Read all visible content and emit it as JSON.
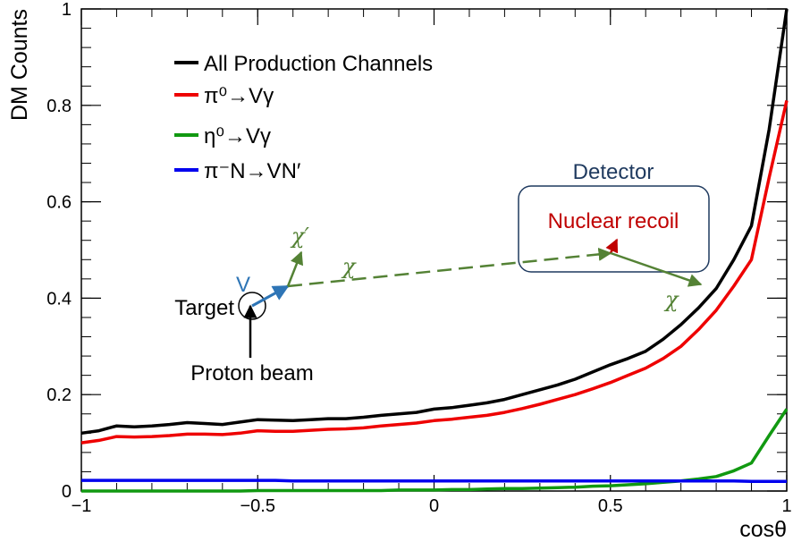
{
  "chart_data": {
    "type": "line",
    "title": "",
    "xlabel": "cosθ",
    "ylabel": "DM Counts",
    "xlim": [
      -1,
      1
    ],
    "ylim": [
      0,
      1
    ],
    "x_ticks": [
      "−1",
      "−0.5",
      "0",
      "0.5",
      "1"
    ],
    "y_ticks": [
      "0",
      "0.2",
      "0.4",
      "0.6",
      "0.8",
      "1"
    ],
    "grid": false,
    "legend_position": "top-left",
    "x": [
      -1.0,
      -0.95,
      -0.9,
      -0.85,
      -0.8,
      -0.75,
      -0.7,
      -0.65,
      -0.6,
      -0.55,
      -0.5,
      -0.45,
      -0.4,
      -0.35,
      -0.3,
      -0.25,
      -0.2,
      -0.15,
      -0.1,
      -0.05,
      0.0,
      0.05,
      0.1,
      0.15,
      0.2,
      0.25,
      0.3,
      0.35,
      0.4,
      0.45,
      0.5,
      0.55,
      0.6,
      0.65,
      0.7,
      0.75,
      0.8,
      0.85,
      0.9,
      0.95,
      1.0
    ],
    "series": [
      {
        "name": "All Production Channels",
        "color": "#000000",
        "values": [
          0.12,
          0.125,
          0.135,
          0.133,
          0.135,
          0.138,
          0.142,
          0.14,
          0.138,
          0.143,
          0.148,
          0.147,
          0.146,
          0.148,
          0.15,
          0.15,
          0.153,
          0.157,
          0.16,
          0.163,
          0.17,
          0.173,
          0.178,
          0.183,
          0.19,
          0.2,
          0.21,
          0.22,
          0.232,
          0.247,
          0.262,
          0.275,
          0.29,
          0.315,
          0.345,
          0.38,
          0.42,
          0.48,
          0.55,
          0.75,
          1.0
        ]
      },
      {
        "name": "π⁰→Vγ",
        "color": "#ee0000",
        "values": [
          0.1,
          0.105,
          0.113,
          0.112,
          0.113,
          0.115,
          0.118,
          0.118,
          0.117,
          0.12,
          0.125,
          0.124,
          0.124,
          0.126,
          0.128,
          0.129,
          0.131,
          0.135,
          0.138,
          0.141,
          0.146,
          0.149,
          0.153,
          0.157,
          0.163,
          0.171,
          0.18,
          0.19,
          0.2,
          0.212,
          0.225,
          0.24,
          0.255,
          0.275,
          0.3,
          0.335,
          0.375,
          0.425,
          0.48,
          0.65,
          0.81
        ]
      },
      {
        "name": "η⁰→Vγ",
        "color": "#119911",
        "values": [
          0.0,
          0.0,
          0.0,
          0.0,
          0.0,
          0.0,
          0.0,
          0.0,
          0.0,
          0.0,
          0.001,
          0.001,
          0.001,
          0.001,
          0.001,
          0.001,
          0.001,
          0.001,
          0.002,
          0.002,
          0.002,
          0.003,
          0.003,
          0.004,
          0.005,
          0.005,
          0.006,
          0.007,
          0.008,
          0.01,
          0.011,
          0.013,
          0.015,
          0.018,
          0.021,
          0.025,
          0.03,
          0.042,
          0.058,
          0.115,
          0.17
        ]
      },
      {
        "name": "π⁻N→VN′",
        "color": "#0000ee",
        "values": [
          0.022,
          0.022,
          0.022,
          0.022,
          0.022,
          0.022,
          0.022,
          0.022,
          0.022,
          0.022,
          0.022,
          0.022,
          0.021,
          0.021,
          0.021,
          0.021,
          0.021,
          0.021,
          0.021,
          0.021,
          0.021,
          0.021,
          0.021,
          0.021,
          0.021,
          0.021,
          0.021,
          0.021,
          0.021,
          0.021,
          0.021,
          0.021,
          0.021,
          0.021,
          0.021,
          0.021,
          0.021,
          0.021,
          0.02,
          0.02,
          0.02
        ]
      }
    ],
    "inset": {
      "detector_label": "Detector",
      "recoil_label": "Nuclear recoil",
      "target_label": "Target",
      "beam_label": "Proton beam",
      "v_label": "V",
      "chi_label": "χ",
      "chi_prime_label": "χ′",
      "chi_out_label": "χ",
      "detector_color": "#1f3a5f",
      "recoil_color": "#c00000",
      "chi_color": "#548235",
      "v_color": "#2e75b6"
    }
  }
}
